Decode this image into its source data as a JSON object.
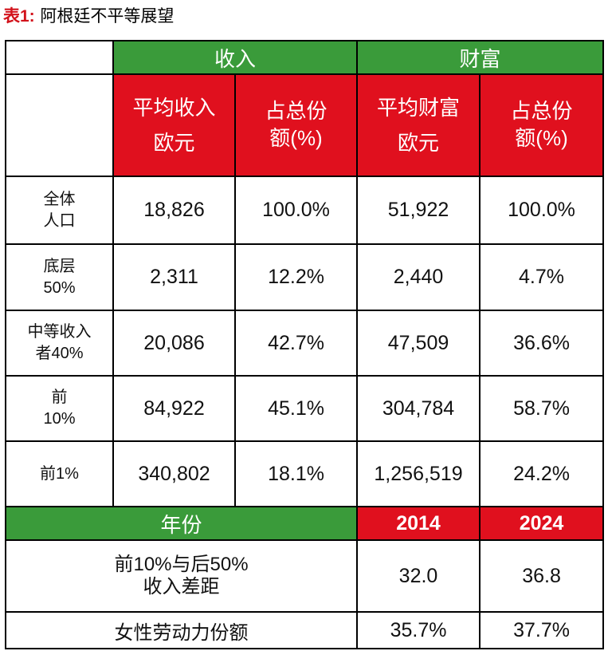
{
  "title": {
    "label": "表1:",
    "text": "阿根廷不平等展望"
  },
  "table": {
    "groups": [
      "收入",
      "财富"
    ],
    "subheaders": [
      "平均收入\n欧元",
      "占总份\n额(%)",
      "平均财富\n欧元",
      "占总份\n额(%)"
    ],
    "rows": [
      [
        "全体\n人口",
        "18,826",
        "100.0%",
        "51,922",
        "100.0%"
      ],
      [
        "底层\n50%",
        "2,311",
        "12.2%",
        "2,440",
        "4.7%"
      ],
      [
        "中等收入\n者40%",
        "20,086",
        "42.7%",
        "47,509",
        "36.6%"
      ],
      [
        "前\n10%",
        "84,922",
        "45.1%",
        "304,784",
        "58.7%"
      ],
      [
        "前1%",
        "340,802",
        "18.1%",
        "1,256,519",
        "24.2%"
      ]
    ],
    "year_row": [
      "年份",
      "2014",
      "2024"
    ],
    "extra_rows": [
      [
        "前10%与后50%\n收入差距",
        "32.0",
        "36.8"
      ],
      [
        "女性劳动力份额",
        "35.7%",
        "37.7%"
      ]
    ]
  }
}
